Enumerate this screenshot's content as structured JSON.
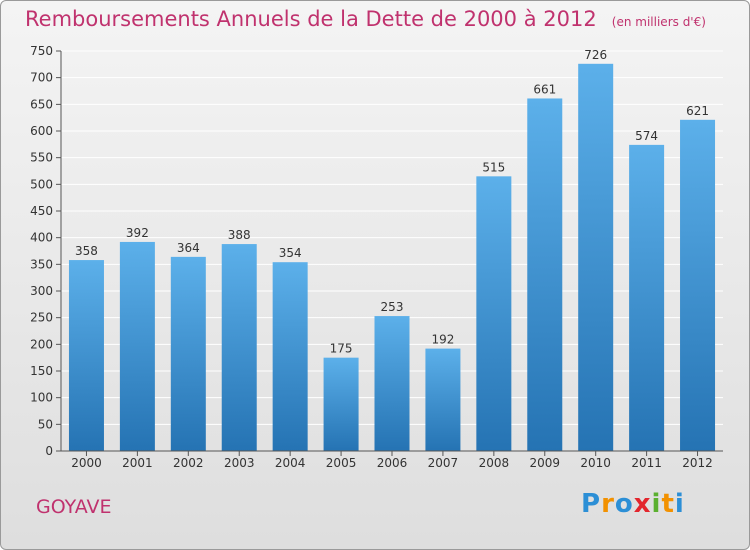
{
  "chart_data": {
    "type": "bar",
    "title": "Remboursements Annuels de la Dette de 2000 à 2012",
    "subtitle": "(en milliers d'€)",
    "categories": [
      "2000",
      "2001",
      "2002",
      "2003",
      "2004",
      "2005",
      "2006",
      "2007",
      "2008",
      "2009",
      "2010",
      "2011",
      "2012"
    ],
    "values": [
      358,
      392,
      364,
      388,
      354,
      175,
      253,
      192,
      515,
      661,
      726,
      574,
      621
    ],
    "ylim": [
      0,
      750
    ],
    "ytick_step": 50,
    "xlabel": "",
    "ylabel": "",
    "grid": true,
    "bar_color": "#3a8fd0"
  },
  "commune": "GOYAVE",
  "brand": {
    "text": "Proxiti",
    "letters": [
      "P",
      "r",
      "o",
      "x",
      "i",
      "t",
      "i"
    ],
    "colors": [
      "#2c8fd6",
      "#f29100",
      "#2c8fd6",
      "#e3262d",
      "#5bb030",
      "#f29100",
      "#2c8fd6"
    ]
  },
  "colors": {
    "title": "#c0326e",
    "grid": "#ffffff",
    "axis": "#555555"
  }
}
